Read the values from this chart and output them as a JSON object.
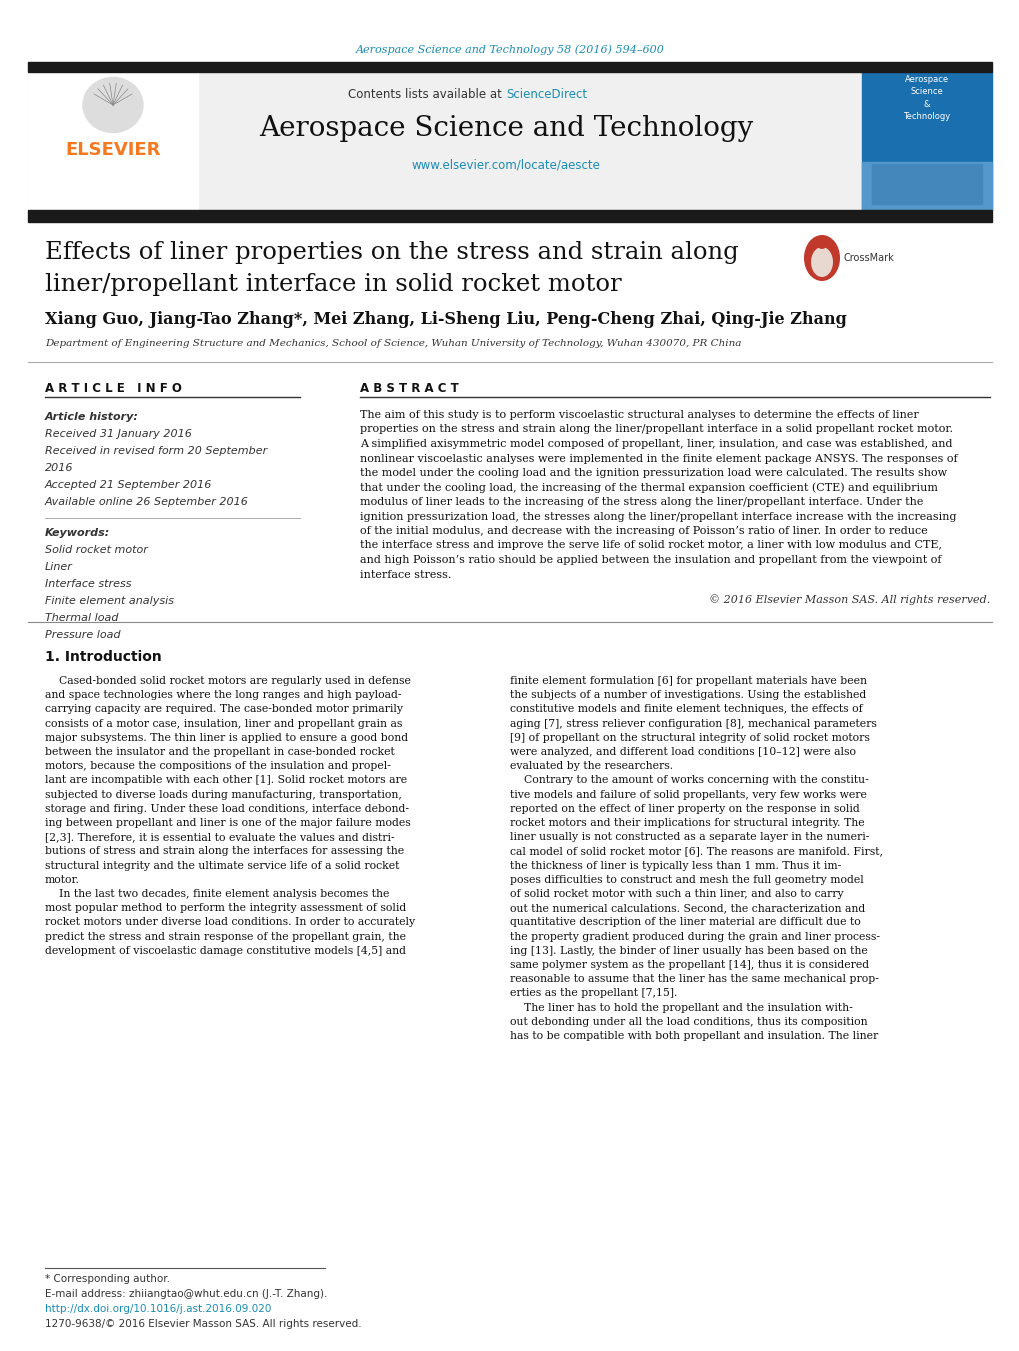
{
  "journal_ref": "Aerospace Science and Technology 58 (2016) 594–600",
  "journal_ref_color": "#1a8cb5",
  "contents_text": "Contents lists available at ",
  "sciencedirect_text": "ScienceDirect",
  "sciencedirect_color": "#1a8cb5",
  "journal_title": "Aerospace Science and Technology",
  "journal_url": "www.elsevier.com/locate/aescte",
  "journal_url_color": "#1a8cb5",
  "elsevier_color": "#f47920",
  "article_title_line1": "Effects of liner properties on the stress and strain along",
  "article_title_line2": "liner/propellant interface in solid rocket motor",
  "authors": "Xiang Guo, Jiang-Tao Zhang*, Mei Zhang, Li-Sheng Liu, Peng-Cheng Zhai, Qing-Jie Zhang",
  "affiliation": "Department of Engineering Structure and Mechanics, School of Science, Wuhan University of Technology, Wuhan 430070, PR China",
  "article_info_title": "A R T I C L E   I N F O",
  "abstract_title": "A B S T R A C T",
  "article_history_label": "Article history:",
  "received_label": "Received 31 January 2016",
  "revised_label": "Received in revised form 20 September",
  "revised_label2": "2016",
  "accepted_label": "Accepted 21 September 2016",
  "available_label": "Available online 26 September 2016",
  "keywords_label": "Keywords:",
  "keywords": [
    "Solid rocket motor",
    "Liner",
    "Interface stress",
    "Finite element analysis",
    "Thermal load",
    "Pressure load"
  ],
  "abstract_text": "The aim of this study is to perform viscoelastic structural analyses to determine the effects of liner properties on the stress and strain along the liner/propellant interface in a solid propellant rocket motor. A simplified axisymmetric model composed of propellant, liner, insulation, and case was established, and nonlinear viscoelastic analyses were implemented in the finite element package ANSYS. The responses of the model under the cooling load and the ignition pressurization load were calculated. The results show that under the cooling load, the increasing of the thermal expansion coefficient (CTE) and equilibrium modulus of liner leads to the increasing of the stress along the liner/propellant interface. Under the ignition pressurization load, the stresses along the liner/propellant interface increase with the increasing of the initial modulus, and decrease with the increasing of Poisson’s ratio of liner. In order to reduce the interface stress and improve the serve life of solid rocket motor, a liner with low modulus and CTE, and high Poisson’s ratio should be applied between the insulation and propellant from the viewpoint of interface stress.",
  "copyright_text": "© 2016 Elsevier Masson SAS. All rights reserved.",
  "section_title": "1. Introduction",
  "intro_col1_lines": [
    "    Cased-bonded solid rocket motors are regularly used in defense",
    "and space technologies where the long ranges and high payload-",
    "carrying capacity are required. The case-bonded motor primarily",
    "consists of a motor case, insulation, liner and propellant grain as",
    "major subsystems. The thin liner is applied to ensure a good bond",
    "between the insulator and the propellant in case-bonded rocket",
    "motors, because the compositions of the insulation and propel-",
    "lant are incompatible with each other [1]. Solid rocket motors are",
    "subjected to diverse loads during manufacturing, transportation,",
    "storage and firing. Under these load conditions, interface debond-",
    "ing between propellant and liner is one of the major failure modes",
    "[2,3]. Therefore, it is essential to evaluate the values and distri-",
    "butions of stress and strain along the interfaces for assessing the",
    "structural integrity and the ultimate service life of a solid rocket",
    "motor.",
    "    In the last two decades, finite element analysis becomes the",
    "most popular method to perform the integrity assessment of solid",
    "rocket motors under diverse load conditions. In order to accurately",
    "predict the stress and strain response of the propellant grain, the",
    "development of viscoelastic damage constitutive models [4,5] and"
  ],
  "intro_col2_lines": [
    "finite element formulation [6] for propellant materials have been",
    "the subjects of a number of investigations. Using the established",
    "constitutive models and finite element techniques, the effects of",
    "aging [7], stress reliever configuration [8], mechanical parameters",
    "[9] of propellant on the structural integrity of solid rocket motors",
    "were analyzed, and different load conditions [10–12] were also",
    "evaluated by the researchers.",
    "    Contrary to the amount of works concerning with the constitu-",
    "tive models and failure of solid propellants, very few works were",
    "reported on the effect of liner property on the response in solid",
    "rocket motors and their implications for structural integrity. The",
    "liner usually is not constructed as a separate layer in the numeri-",
    "cal model of solid rocket motor [6]. The reasons are manifold. First,",
    "the thickness of liner is typically less than 1 mm. Thus it im-",
    "poses difficulties to construct and mesh the full geometry model",
    "of solid rocket motor with such a thin liner, and also to carry",
    "out the numerical calculations. Second, the characterization and",
    "quantitative description of the liner material are difficult due to",
    "the property gradient produced during the grain and liner process-",
    "ing [13]. Lastly, the binder of liner usually has been based on the",
    "same polymer system as the propellant [14], thus it is considered",
    "reasonable to assume that the liner has the same mechanical prop-",
    "erties as the propellant [7,15].",
    "    The liner has to hold the propellant and the insulation with-",
    "out debonding under all the load conditions, thus its composition",
    "has to be compatible with both propellant and insulation. The liner"
  ],
  "abstract_lines": [
    "The aim of this study is to perform viscoelastic structural analyses to determine the effects of liner",
    "properties on the stress and strain along the liner/propellant interface in a solid propellant rocket motor.",
    "A simplified axisymmetric model composed of propellant, liner, insulation, and case was established, and",
    "nonlinear viscoelastic analyses were implemented in the finite element package ANSYS. The responses of",
    "the model under the cooling load and the ignition pressurization load were calculated. The results show",
    "that under the cooling load, the increasing of the thermal expansion coefficient (CTE) and equilibrium",
    "modulus of liner leads to the increasing of the stress along the liner/propellant interface. Under the",
    "ignition pressurization load, the stresses along the liner/propellant interface increase with the increasing",
    "of the initial modulus, and decrease with the increasing of Poisson’s ratio of liner. In order to reduce",
    "the interface stress and improve the serve life of solid rocket motor, a liner with low modulus and CTE,",
    "and high Poisson’s ratio should be applied between the insulation and propellant from the viewpoint of",
    "interface stress."
  ],
  "footnote_star": "* Corresponding author.",
  "footnote_email": "E-mail address: zhiiangtao@whut.edu.cn (J.-T. Zhang).",
  "footnote_doi": "http://dx.doi.org/10.1016/j.ast.2016.09.020",
  "footnote_issn": "1270-9638/© 2016 Elsevier Masson SAS. All rights reserved.",
  "bg_color": "#ffffff",
  "dark_bar_color": "#1a1a1a",
  "right_box_bg": "#1a6faf"
}
